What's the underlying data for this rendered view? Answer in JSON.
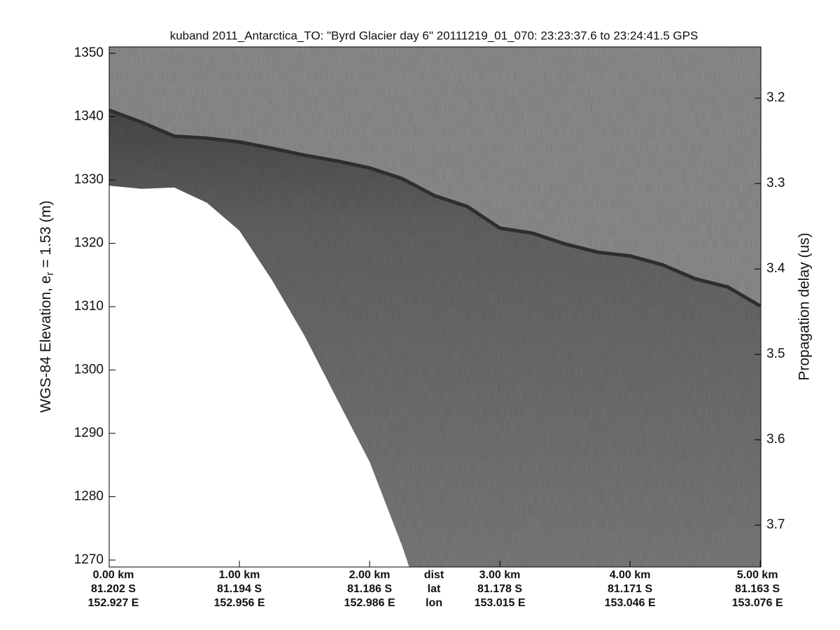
{
  "chart_data": {
    "type": "radargram",
    "title": "kuband 2011_Antarctica_TO: \"Byrd Glacier day 6\"  20111219_01_070: 23:23:37.6 to 23:24:41.5 GPS",
    "ylabel": [
      "WGS-84 Elevation, e",
      "r",
      " = 1.53 (m)"
    ],
    "y2label": "Propagation delay (us)",
    "xrow_labels": [
      "dist",
      "lat",
      "lon"
    ],
    "xlim": [
      0,
      5.005
    ],
    "xticks": [
      {
        "value": 0,
        "label": "0.00 km"
      },
      {
        "value": 1,
        "label": "1.00 km"
      },
      {
        "value": 2,
        "label": "2.00 km"
      },
      {
        "value": 3,
        "label": "3.00 km"
      },
      {
        "value": 4,
        "label": "4.00 km"
      },
      {
        "value": 5,
        "label": "5.00 km"
      }
    ],
    "lat_labels": [
      "81.202 S",
      "81.194 S",
      "81.186 S",
      "81.178 S",
      "81.171 S",
      "81.163 S"
    ],
    "lon_labels": [
      "152.927 E",
      "152.956 E",
      "152.986 E",
      "153.015 E",
      "153.046 E",
      "153.076 E"
    ],
    "ylim": [
      1268.9,
      1351.0
    ],
    "yticks": [
      1270,
      1280,
      1290,
      1300,
      1310,
      1320,
      1330,
      1340,
      1350
    ],
    "y2lim": [
      3.749,
      3.14
    ],
    "y2ticks": [
      3.2,
      3.3,
      3.4,
      3.5,
      3.6,
      3.7
    ],
    "x": [
      0,
      0.25,
      0.5,
      0.75,
      1.0,
      1.25,
      1.5,
      1.75,
      2.0,
      2.25,
      2.5,
      2.75,
      3.0,
      3.25,
      3.5,
      3.75,
      4.0,
      4.25,
      4.5,
      4.75,
      5.0
    ],
    "series": [
      {
        "color": "#2e2e2e",
        "values": [
          1341.0,
          1339.1,
          1336.9,
          1336.6,
          1336.0,
          1335.0,
          1333.9,
          1333.0,
          1331.9,
          1330.2,
          1327.5,
          1325.8,
          1322.4,
          1321.6,
          1319.9,
          1318.6,
          1318.0,
          1316.6,
          1314.4,
          1313.1,
          1310.1
        ]
      },
      {
        "color": "#ffffff",
        "values": [
          1329.1,
          1328.6,
          1328.8,
          1326.4,
          1322.0,
          1314.2,
          1305.4,
          1295.4,
          1285.5,
          1272.2,
          null,
          null,
          null,
          null,
          null,
          null,
          null,
          null,
          null,
          null,
          null
        ]
      }
    ]
  }
}
